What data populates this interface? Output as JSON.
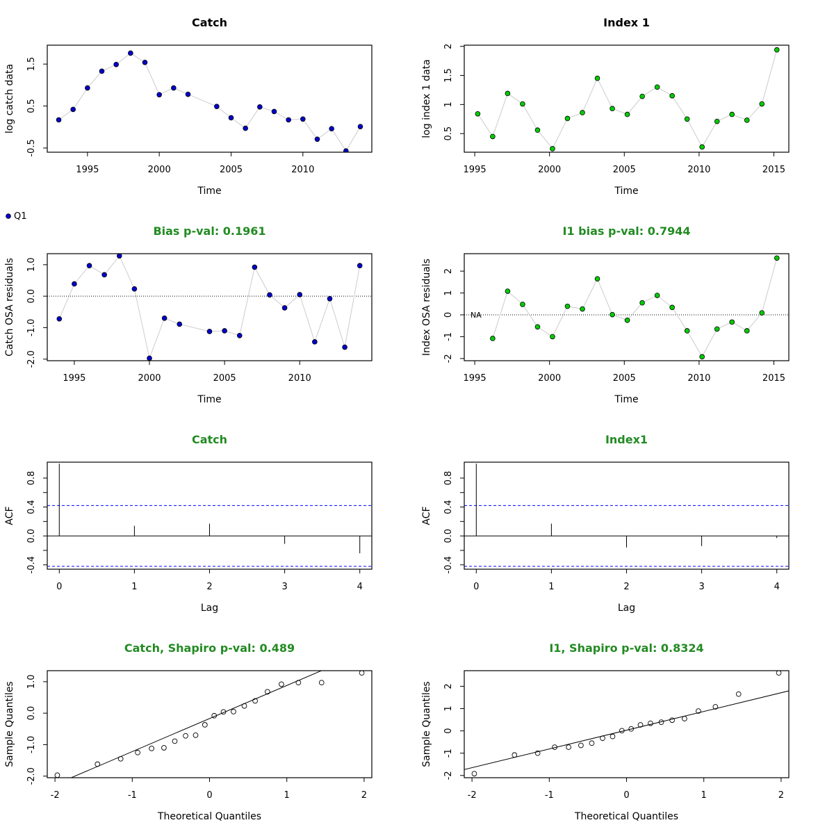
{
  "colors": {
    "title_default": "#000000",
    "title_green": "#228b22",
    "catch_points": "#0000cd",
    "index_points": "#00cd00",
    "ci_line": "#0000ff",
    "connector": "#cccccc"
  },
  "legend": {
    "label": "Q1",
    "color": "#0000cd"
  },
  "chart_data": [
    {
      "type": "scatter",
      "title": "Catch",
      "title_color": "title_default",
      "xlabel": "Time",
      "ylabel": "log catch data",
      "xlim": [
        1992.2,
        2014.8
      ],
      "ylim": [
        -0.6,
        1.95
      ],
      "xticks": [
        1995,
        2000,
        2005,
        2010
      ],
      "yticks": [
        -0.5,
        0.5,
        1.5
      ],
      "connect": true,
      "point_color": "catch_points",
      "series": [
        {
          "x": [
            1993,
            1994,
            1995,
            1996,
            1997,
            1998,
            1999,
            2000,
            2001,
            2002,
            2004,
            2005,
            2006,
            2007,
            2008,
            2009,
            2010,
            2011,
            2012,
            2013,
            2014
          ],
          "y": [
            0.17,
            0.42,
            0.93,
            1.33,
            1.49,
            1.76,
            1.54,
            0.77,
            0.93,
            0.78,
            0.49,
            0.22,
            -0.03,
            0.48,
            0.37,
            0.17,
            0.19,
            -0.29,
            -0.04,
            -0.57,
            0.01
          ]
        }
      ]
    },
    {
      "type": "scatter",
      "title": "Index 1",
      "title_color": "title_default",
      "xlabel": "Time",
      "ylabel": "log index 1 data",
      "xlim": [
        1994.3,
        2016.0
      ],
      "ylim": [
        0.18,
        2.02
      ],
      "xticks": [
        1995,
        2000,
        2005,
        2010,
        2015
      ],
      "yticks": [
        0.5,
        1.0,
        1.5,
        2.0
      ],
      "connect": true,
      "point_color": "index_points",
      "series": [
        {
          "x": [
            1995.2,
            1996.2,
            1997.2,
            1998.2,
            1999.2,
            2000.2,
            2001.2,
            2002.2,
            2003.2,
            2004.2,
            2005.2,
            2006.2,
            2007.2,
            2008.2,
            2009.2,
            2010.2,
            2011.2,
            2012.2,
            2013.2,
            2014.2,
            2015.2
          ],
          "y": [
            0.84,
            0.45,
            1.19,
            1.01,
            0.56,
            0.24,
            0.76,
            0.86,
            1.45,
            0.93,
            0.83,
            1.14,
            1.3,
            1.15,
            0.75,
            0.27,
            0.71,
            0.83,
            0.73,
            1.01,
            1.94
          ]
        }
      ]
    },
    {
      "type": "scatter",
      "title": "Bias p-val: 0.1961",
      "title_color": "title_green",
      "xlabel": "Time",
      "ylabel": "Catch OSA residuals",
      "xlim": [
        1993.2,
        2014.8
      ],
      "ylim": [
        -2.05,
        1.35
      ],
      "xticks": [
        1995,
        2000,
        2005,
        2010
      ],
      "yticks": [
        -2.0,
        -1.0,
        0.0,
        1.0
      ],
      "ytick_labels": [
        "-2.0",
        "-1.0",
        "0.0",
        "1.0"
      ],
      "hline": 0,
      "connect": true,
      "point_color": "catch_points",
      "series": [
        {
          "x": [
            1994,
            1995,
            1996,
            1997,
            1998,
            1999,
            2000,
            2001,
            2002,
            2004,
            2005,
            2006,
            2007,
            2008,
            2009,
            2010,
            2011,
            2012,
            2013,
            2014
          ],
          "y": [
            -0.72,
            0.39,
            0.97,
            0.68,
            1.28,
            0.23,
            -1.97,
            -0.7,
            -0.89,
            -1.12,
            -1.1,
            -1.25,
            0.92,
            0.04,
            -0.37,
            0.05,
            -1.45,
            -0.08,
            -1.62,
            0.97
          ]
        }
      ]
    },
    {
      "type": "scatter",
      "title": "I1 bias p-val: 0.7944",
      "title_color": "title_green",
      "xlabel": "Time",
      "ylabel": "Index OSA residuals",
      "xlim": [
        1994.3,
        2016.0
      ],
      "ylim": [
        -2.1,
        2.8
      ],
      "xticks": [
        1995,
        2000,
        2005,
        2010,
        2015
      ],
      "yticks": [
        -2,
        -1,
        0,
        1,
        2
      ],
      "hline": 0,
      "na_label": "NA",
      "connect": true,
      "point_color": "index_points",
      "series": [
        {
          "x": [
            1996.2,
            1997.2,
            1998.2,
            1999.2,
            2000.2,
            2001.2,
            2002.2,
            2003.2,
            2004.2,
            2005.2,
            2006.2,
            2007.2,
            2008.2,
            2009.2,
            2010.2,
            2011.2,
            2012.2,
            2013.2,
            2014.2,
            2015.2
          ],
          "y": [
            -1.08,
            1.08,
            0.48,
            -0.55,
            -1.0,
            0.39,
            0.27,
            1.65,
            0.01,
            -0.25,
            0.55,
            0.89,
            0.34,
            -0.73,
            -1.92,
            -0.65,
            -0.33,
            -0.73,
            0.09,
            2.6
          ]
        }
      ]
    },
    {
      "type": "bar",
      "subtype": "acf",
      "title": "Catch",
      "title_color": "title_green",
      "xlabel": "Lag",
      "ylabel": "ACF",
      "xlim": [
        -0.16,
        4.16
      ],
      "ylim": [
        -0.46,
        1.02
      ],
      "xticks": [
        0,
        1,
        2,
        3,
        4
      ],
      "yticks": [
        -0.4,
        0.0,
        0.4,
        0.8
      ],
      "ytick_labels": [
        "-0.4",
        "0.0",
        "0.4",
        "0.8"
      ],
      "ci": 0.42,
      "lags": [
        0,
        1,
        2,
        3,
        4
      ],
      "values": [
        1.0,
        0.14,
        0.17,
        -0.11,
        -0.24
      ]
    },
    {
      "type": "bar",
      "subtype": "acf",
      "title": "Index1",
      "title_color": "title_green",
      "xlabel": "Lag",
      "ylabel": "ACF",
      "xlim": [
        -0.16,
        4.16
      ],
      "ylim": [
        -0.46,
        1.02
      ],
      "xticks": [
        0,
        1,
        2,
        3,
        4
      ],
      "yticks": [
        -0.4,
        0.0,
        0.4,
        0.8
      ],
      "ytick_labels": [
        "-0.4",
        "0.0",
        "0.4",
        "0.8"
      ],
      "ci": 0.42,
      "lags": [
        0,
        1,
        2,
        3,
        4
      ],
      "values": [
        1.0,
        0.17,
        -0.16,
        -0.14,
        -0.03
      ]
    },
    {
      "type": "scatter",
      "subtype": "qq",
      "title": "Catch, Shapiro p-val: 0.489",
      "title_color": "title_green",
      "xlabel": "Theoretical Quantiles",
      "ylabel": "Sample Quantiles",
      "xlim": [
        -2.1,
        2.1
      ],
      "ylim": [
        -2.05,
        1.35
      ],
      "xticks": [
        -2,
        -1,
        0,
        1,
        2
      ],
      "yticks": [
        -2.0,
        -1.0,
        0.0,
        1.0
      ],
      "ytick_labels": [
        "-2.0",
        "-1.0",
        "0.0",
        "1.0"
      ],
      "qq_line": {
        "intercept": -0.17,
        "slope": 1.05
      },
      "series": [
        {
          "x": [
            -1.97,
            -1.45,
            -1.15,
            -0.93,
            -0.75,
            -0.59,
            -0.45,
            -0.31,
            -0.18,
            -0.06,
            0.06,
            0.18,
            0.31,
            0.45,
            0.59,
            0.75,
            0.93,
            1.15,
            1.45,
            1.97
          ],
          "y": [
            -1.97,
            -1.62,
            -1.45,
            -1.25,
            -1.12,
            -1.1,
            -0.89,
            -0.72,
            -0.7,
            -0.37,
            -0.08,
            0.04,
            0.05,
            0.23,
            0.39,
            0.68,
            0.92,
            0.97,
            0.97,
            1.28
          ]
        }
      ]
    },
    {
      "type": "scatter",
      "subtype": "qq",
      "title": "I1, Shapiro p-val: 0.8324",
      "title_color": "title_green",
      "xlabel": "Theoretical Quantiles",
      "ylabel": "Sample Quantiles",
      "xlim": [
        -2.1,
        2.1
      ],
      "ylim": [
        -2.1,
        2.7
      ],
      "xticks": [
        -2,
        -1,
        0,
        1,
        2
      ],
      "yticks": [
        -2,
        -1,
        0,
        1,
        2
      ],
      "qq_line": {
        "intercept": 0.03,
        "slope": 0.84
      },
      "series": [
        {
          "x": [
            -1.97,
            -1.45,
            -1.15,
            -0.93,
            -0.75,
            -0.59,
            -0.45,
            -0.31,
            -0.18,
            -0.06,
            0.06,
            0.18,
            0.31,
            0.45,
            0.59,
            0.75,
            0.93,
            1.15,
            1.45,
            1.97
          ],
          "y": [
            -1.92,
            -1.08,
            -1.0,
            -0.73,
            -0.73,
            -0.65,
            -0.55,
            -0.33,
            -0.25,
            0.01,
            0.09,
            0.27,
            0.34,
            0.39,
            0.48,
            0.55,
            0.89,
            1.08,
            1.65,
            2.6
          ]
        }
      ]
    }
  ]
}
